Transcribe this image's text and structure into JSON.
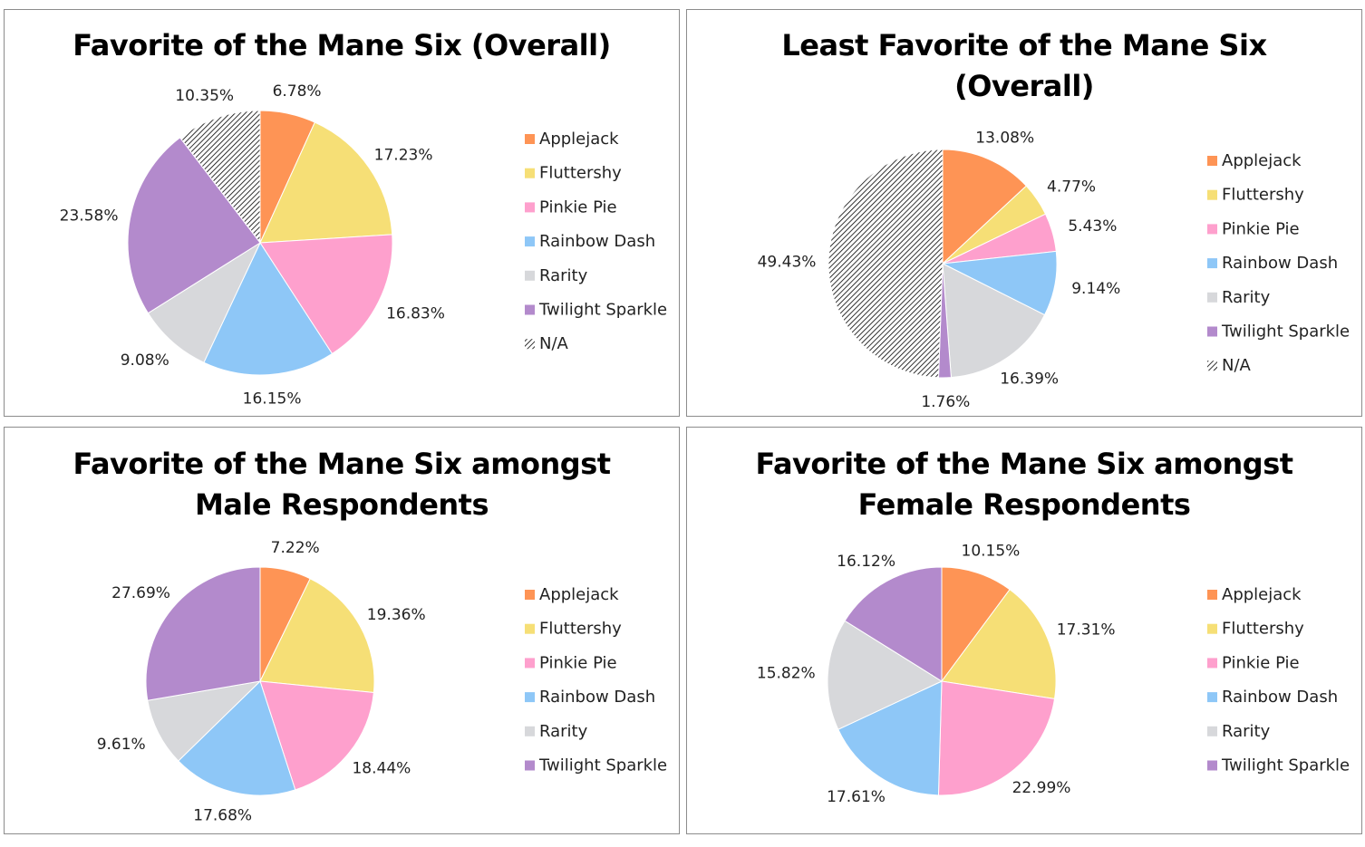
{
  "colors": {
    "Applejack": "#fe9455",
    "Fluttershy": "#f6df76",
    "Pinkie Pie": "#fea0cd",
    "Rainbow Dash": "#8ec7f7",
    "Rarity": "#d7d8db",
    "Twilight Sparkle": "#b38acc",
    "N/A": "hatch"
  },
  "chart_data": [
    {
      "type": "pie",
      "title": "Favorite of the Mane Six (Overall)",
      "categories": [
        "Applejack",
        "Fluttershy",
        "Pinkie Pie",
        "Rainbow Dash",
        "Rarity",
        "Twilight Sparkle",
        "N/A"
      ],
      "values": [
        6.78,
        17.23,
        16.83,
        16.15,
        9.08,
        23.58,
        10.35
      ],
      "labels": [
        "6.78%",
        "17.23%",
        "16.83%",
        "16.15%",
        "9.08%",
        "23.58%",
        "10.35%"
      ],
      "legend": "right"
    },
    {
      "type": "pie",
      "title": "Least Favorite of the Mane Six (Overall)",
      "title_lines": [
        "Least Favorite of the Mane Six",
        "(Overall)"
      ],
      "categories": [
        "Applejack",
        "Fluttershy",
        "Pinkie Pie",
        "Rainbow Dash",
        "Rarity",
        "Twilight Sparkle",
        "N/A"
      ],
      "values": [
        13.08,
        4.77,
        5.43,
        9.14,
        16.39,
        1.76,
        49.43
      ],
      "labels": [
        "13.08%",
        "4.77%",
        "5.43%",
        "9.14%",
        "16.39%",
        "1.76%",
        "49.43%"
      ],
      "legend": "right"
    },
    {
      "type": "pie",
      "title": "Favorite of the Mane Six amongst Male Respondents",
      "title_lines": [
        "Favorite of the Mane Six amongst",
        "Male Respondents"
      ],
      "categories": [
        "Applejack",
        "Fluttershy",
        "Pinkie Pie",
        "Rainbow Dash",
        "Rarity",
        "Twilight Sparkle"
      ],
      "values": [
        7.22,
        19.36,
        18.44,
        17.68,
        9.61,
        27.69
      ],
      "labels": [
        "7.22%",
        "19.36%",
        "18.44%",
        "17.68%",
        "9.61%",
        "27.69%"
      ],
      "legend": "right"
    },
    {
      "type": "pie",
      "title": "Favorite of the Mane Six amongst Female Respondents",
      "title_lines": [
        "Favorite of the Mane Six amongst",
        "Female Respondents"
      ],
      "categories": [
        "Applejack",
        "Fluttershy",
        "Pinkie Pie",
        "Rainbow Dash",
        "Rarity",
        "Twilight Sparkle"
      ],
      "values": [
        10.15,
        17.31,
        22.99,
        17.61,
        15.82,
        16.12
      ],
      "labels": [
        "10.15%",
        "17.31%",
        "22.99%",
        "17.61%",
        "15.82%",
        "16.12%"
      ],
      "legend": "right"
    }
  ]
}
